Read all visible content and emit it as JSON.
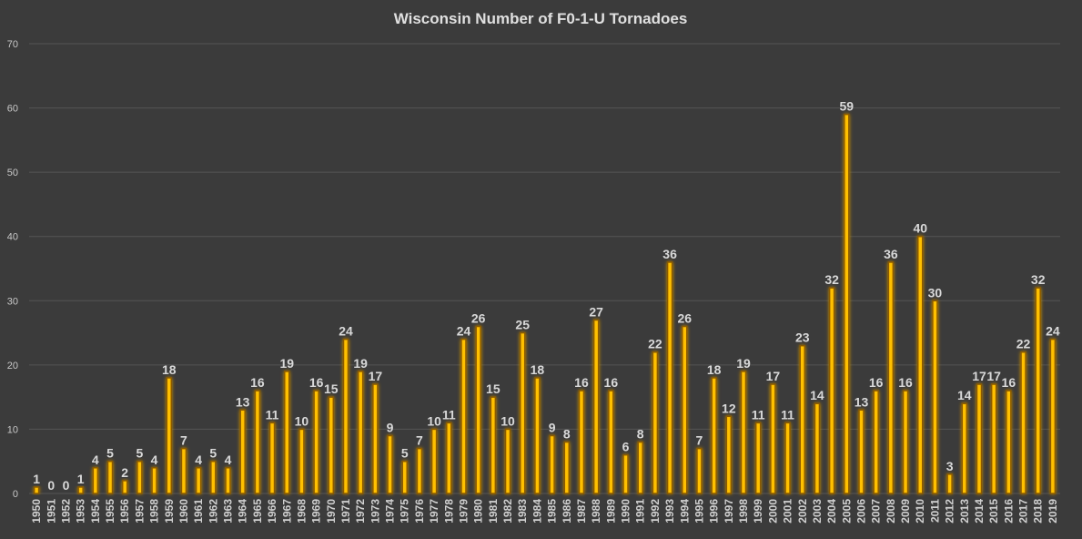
{
  "chart_data": {
    "type": "bar",
    "title": "Wisconsin Number of F0-1-U Tornadoes",
    "xlabel": "",
    "ylabel": "",
    "ylim": [
      0,
      70
    ],
    "yticks": [
      0,
      10,
      20,
      30,
      40,
      50,
      60,
      70
    ],
    "grid": true,
    "legend": "none",
    "bar_color": "#ffc000",
    "bar_glow_color": "#8a5a00",
    "background": "#3b3b3b",
    "categories": [
      "1950",
      "1951",
      "1952",
      "1953",
      "1954",
      "1955",
      "1956",
      "1957",
      "1958",
      "1959",
      "1960",
      "1961",
      "1962",
      "1963",
      "1964",
      "1965",
      "1966",
      "1967",
      "1968",
      "1969",
      "1970",
      "1971",
      "1972",
      "1973",
      "1974",
      "1975",
      "1976",
      "1977",
      "1978",
      "1979",
      "1980",
      "1981",
      "1982",
      "1983",
      "1984",
      "1985",
      "1986",
      "1987",
      "1988",
      "1989",
      "1990",
      "1991",
      "1992",
      "1993",
      "1994",
      "1995",
      "1996",
      "1997",
      "1998",
      "1999",
      "2000",
      "2001",
      "2002",
      "2003",
      "2004",
      "2005",
      "2006",
      "2007",
      "2008",
      "2009",
      "2010",
      "2011",
      "2012",
      "2013",
      "2014",
      "2015",
      "2016",
      "2017",
      "2018",
      "2019"
    ],
    "values": [
      1,
      0,
      0,
      1,
      4,
      5,
      2,
      5,
      4,
      18,
      7,
      4,
      5,
      4,
      13,
      16,
      11,
      19,
      10,
      16,
      15,
      24,
      19,
      17,
      9,
      5,
      7,
      10,
      11,
      24,
      26,
      15,
      10,
      25,
      18,
      9,
      8,
      16,
      27,
      16,
      6,
      8,
      22,
      36,
      26,
      7,
      18,
      12,
      19,
      11,
      17,
      11,
      23,
      14,
      32,
      59,
      13,
      16,
      36,
      16,
      40,
      30,
      3,
      14,
      17,
      17,
      16,
      22,
      32,
      24
    ]
  }
}
